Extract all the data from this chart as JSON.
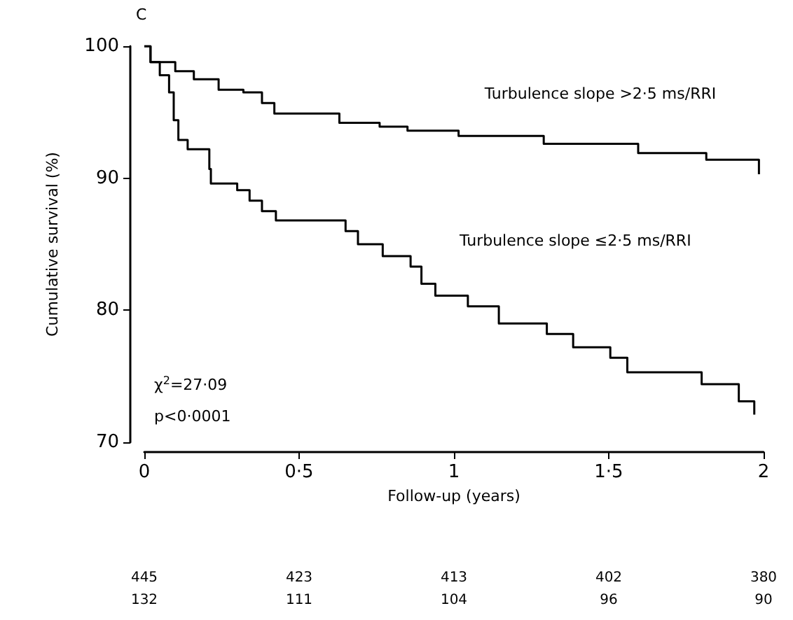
{
  "chart_data": {
    "type": "step",
    "xlabel": "Follow-up (years)",
    "ylabel": "Cumulative survival (%)",
    "xlim": [
      0,
      2
    ],
    "xticks": [
      0,
      {
        "value": 0.5,
        "label": "0·5"
      },
      1,
      {
        "value": 1.5,
        "label": "1·5"
      },
      2
    ],
    "ylim": [
      70,
      100
    ],
    "yticks": [
      70,
      80,
      90,
      100
    ],
    "grid": false,
    "legend": false,
    "marker": "none",
    "line_style": "solid",
    "series": [
      {
        "name": "Turbulence slope >2·5 ms/RRI",
        "color": "#000000",
        "x": [
          0,
          0.02,
          0.1,
          0.16,
          0.24,
          0.32,
          0.38,
          0.42,
          0.63,
          0.76,
          0.85,
          1.015,
          1.29,
          1.595,
          1.815,
          1.89,
          1.985
        ],
        "values": [
          100,
          98.8,
          98.1,
          97.5,
          96.7,
          96.5,
          95.7,
          94.9,
          94.2,
          93.9,
          93.6,
          93.2,
          92.6,
          91.9,
          91.4,
          91.4,
          90.3
        ]
      },
      {
        "name": "Turbulence slope ≤2·5 ms/RRI",
        "color": "#000000",
        "x": [
          0,
          0.02,
          0.05,
          0.08,
          0.095,
          0.11,
          0.14,
          0.21,
          0.215,
          0.3,
          0.34,
          0.38,
          0.425,
          0.65,
          0.69,
          0.77,
          0.86,
          0.895,
          0.94,
          1.045,
          1.145,
          1.3,
          1.385,
          1.505,
          1.56,
          1.8,
          1.92,
          1.97
        ],
        "values": [
          100,
          98.8,
          97.8,
          96.5,
          94.4,
          92.9,
          92.2,
          90.7,
          89.6,
          89.1,
          88.3,
          87.5,
          86.8,
          86.0,
          85.0,
          84.1,
          83.3,
          82.0,
          81.1,
          80.3,
          79.0,
          78.2,
          77.2,
          76.4,
          75.3,
          74.4,
          73.1,
          72.1
        ]
      }
    ],
    "annotations": [
      "C",
      "χ$^{2}$=27·09",
      "p<0·0001",
      "445",
      "423",
      "413",
      "402",
      "380",
      "132",
      "111",
      "104",
      "96",
      "90"
    ]
  }
}
